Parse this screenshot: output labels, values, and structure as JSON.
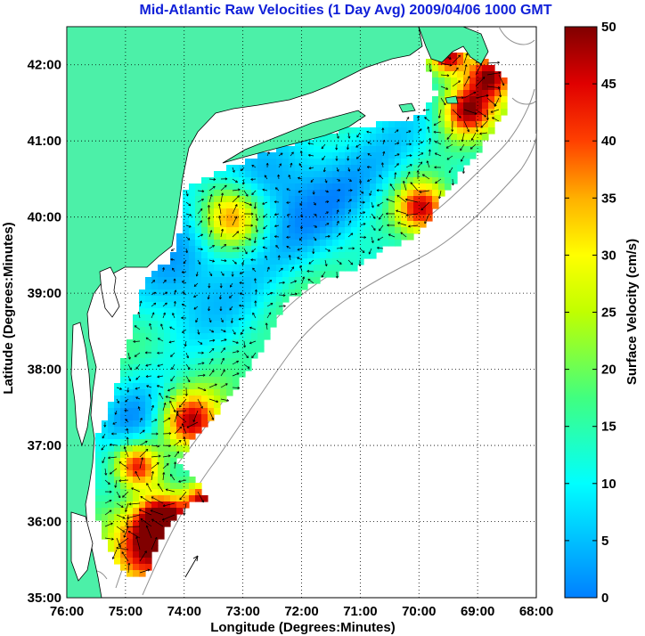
{
  "title": "Mid-Atlantic Raw Velocities (1 Day Avg) 2009/04/06 1000 GMT",
  "xlabel": "Longitude (Degrees:Minutes)",
  "ylabel": "Latitude (Degrees:Minutes)",
  "colorbar_label": "Surface Velocity (cm/s)",
  "colors": {
    "land": "#4cf0a8",
    "title": "#1020d8",
    "arrow": "#000000",
    "grid": "#000000",
    "bathymetry": "#909090"
  },
  "map": {
    "lon_ticks": [
      "76:00",
      "75:00",
      "74:00",
      "73:00",
      "72:00",
      "71:00",
      "70:00",
      "69:00",
      "68:00"
    ],
    "lat_ticks": [
      "42:00",
      "41:00",
      "40:00",
      "39:00",
      "38:00",
      "37:00",
      "36:00",
      "35:00"
    ],
    "lon_range": [
      -76,
      -68
    ],
    "lat_range": [
      35,
      42.5
    ]
  },
  "chart_data": {
    "type": "heatmap",
    "title": "Mid-Atlantic Raw Velocities (1 Day Avg) 2009/04/06 1000 GMT",
    "xlabel": "Longitude (Degrees:Minutes)",
    "ylabel": "Latitude (Degrees:Minutes)",
    "colorbar": {
      "label": "Surface Velocity (cm/s)",
      "ticks": [
        0,
        5,
        10,
        15,
        20,
        25,
        30,
        35,
        40,
        45,
        50
      ],
      "range": [
        0,
        50
      ],
      "colormap": "jet"
    },
    "xlim": [
      -76,
      -68
    ],
    "ylim": [
      35,
      42.5
    ],
    "grid": true
  }
}
